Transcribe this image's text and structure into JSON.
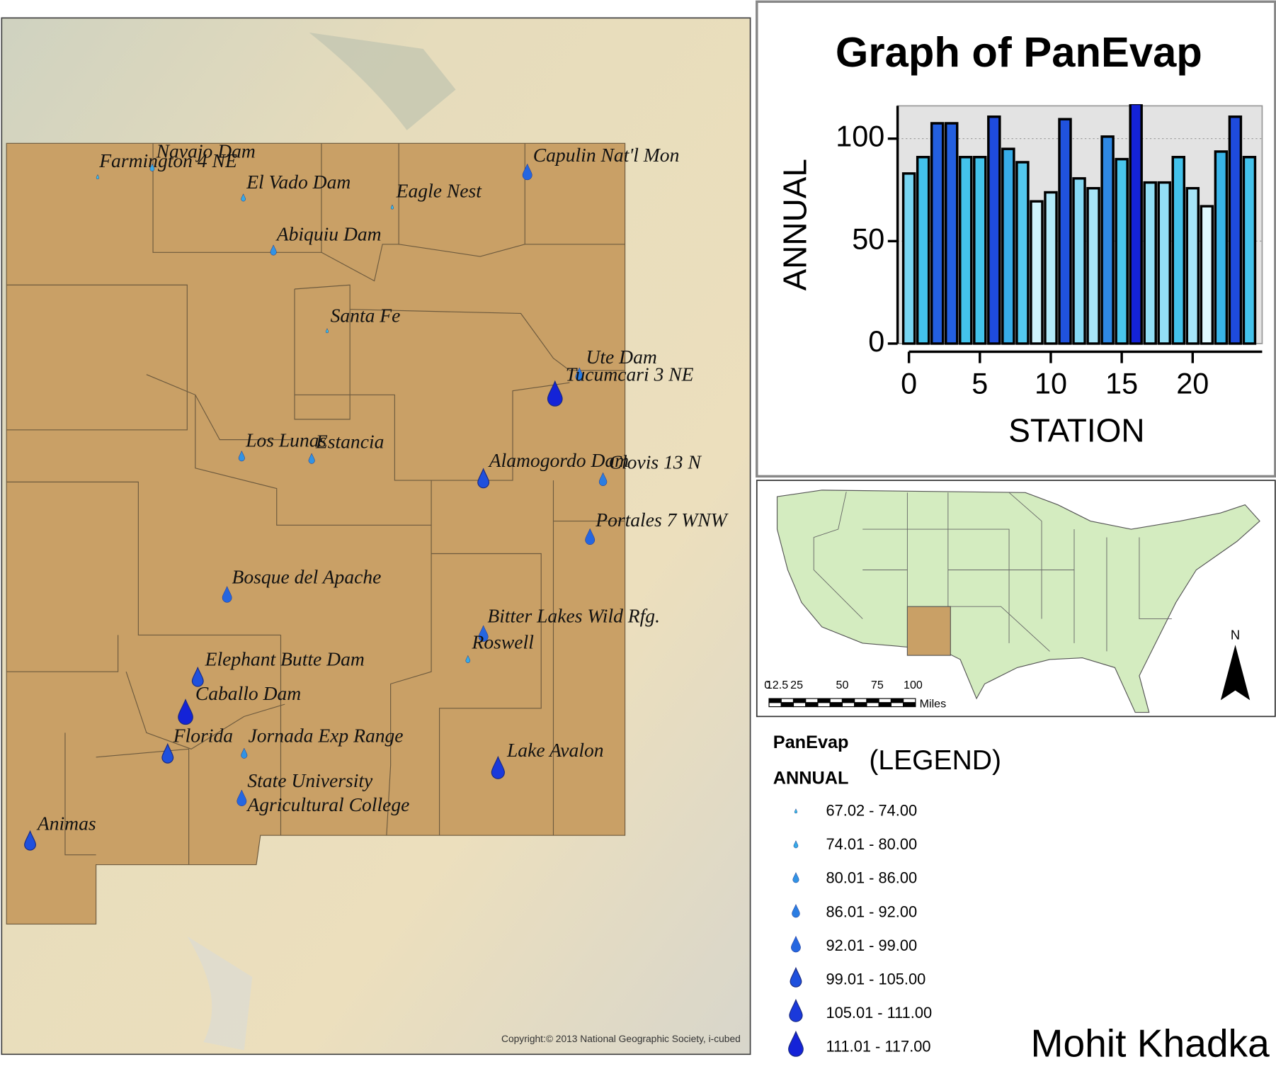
{
  "chart_data": {
    "type": "bar",
    "title": "Graph of PanEvap",
    "x_label": "STATION",
    "y_label": "ANNUAL",
    "x": [
      0,
      1,
      2,
      3,
      4,
      5,
      6,
      7,
      8,
      9,
      10,
      11,
      12,
      13,
      14,
      15,
      16,
      17,
      18,
      19,
      20,
      21,
      22,
      23,
      24
    ],
    "values": [
      83,
      91,
      107.5,
      107.5,
      91,
      91,
      110.7,
      95,
      88.5,
      69.4,
      73.8,
      109.5,
      80.6,
      75.8,
      101,
      90,
      117,
      78.6,
      78.6,
      91,
      75.8,
      67.02,
      93.7,
      110.7,
      91
    ],
    "color_scale": [
      "#dff9ff",
      "#3cc0ea",
      "#1423d8"
    ],
    "xlim": [
      -0.8,
      24.9
    ],
    "ylim": [
      0,
      116
    ],
    "xticks": [
      0,
      5,
      10,
      15,
      20
    ],
    "yticks": [
      0,
      50,
      100
    ],
    "grid": true
  },
  "map": {
    "stations": [
      {
        "lines": [
          "Farmington 4 NE"
        ],
        "class": 0
      },
      {
        "lines": [
          "Navajo Dam"
        ],
        "class": 1
      },
      {
        "lines": [
          "El Vado Dam"
        ],
        "class": 1
      },
      {
        "lines": [
          "Eagle Nest"
        ],
        "class": 0
      },
      {
        "lines": [
          "Capulin Nat'l Mon"
        ],
        "class": 4
      },
      {
        "lines": [
          "Abiquiu Dam"
        ],
        "class": 2
      },
      {
        "lines": [
          "Santa Fe"
        ],
        "class": 0
      },
      {
        "lines": [
          "Ute Dam"
        ],
        "class": 3
      },
      {
        "lines": [
          "Tucumcari 3 NE"
        ],
        "class": 7
      },
      {
        "lines": [
          "Los Lunas"
        ],
        "class": 2
      },
      {
        "lines": [
          "Estancia"
        ],
        "class": 2
      },
      {
        "lines": [
          "Alamogordo Dam"
        ],
        "class": 5
      },
      {
        "lines": [
          "Clovis 13 N"
        ],
        "class": 3
      },
      {
        "lines": [
          "Portales 7 WNW"
        ],
        "class": 4
      },
      {
        "lines": [
          "Bosque del Apache"
        ],
        "class": 4
      },
      {
        "lines": [
          "Bitter Lakes Wild Rfg."
        ],
        "class": 4
      },
      {
        "lines": [
          "Roswell"
        ],
        "class": 1
      },
      {
        "lines": [
          "Elephant Butte Dam"
        ],
        "class": 5
      },
      {
        "lines": [
          "Caballo Dam"
        ],
        "class": 7
      },
      {
        "lines": [
          "Florida"
        ],
        "class": 5
      },
      {
        "lines": [
          "Jornada Exp Range"
        ],
        "class": 2
      },
      {
        "lines": [
          "Lake Avalon"
        ],
        "class": 6
      },
      {
        "lines": [
          "State University",
          "Agricultural College"
        ],
        "class": 4
      },
      {
        "lines": [
          "Animas"
        ],
        "class": 5
      }
    ],
    "copyright": "Copyright:© 2013 National Geographic Society, i-cubed"
  },
  "inset": {
    "scale_labels": [
      "0",
      "12.5",
      "25",
      "50",
      "75",
      "100"
    ],
    "scale_unit": "Miles",
    "north": "N"
  },
  "legend": {
    "layer": "PanEvap",
    "field": "ANNUAL",
    "note": "(LEGEND)",
    "classes": [
      "67.02 - 74.00",
      "74.01 - 80.00",
      "80.01 - 86.00",
      "86.01 - 92.00",
      "92.01 - 99.00",
      "99.01 - 105.00",
      "105.01 - 111.00",
      "111.01 - 117.00"
    ]
  },
  "author": "Mohit Khadka"
}
